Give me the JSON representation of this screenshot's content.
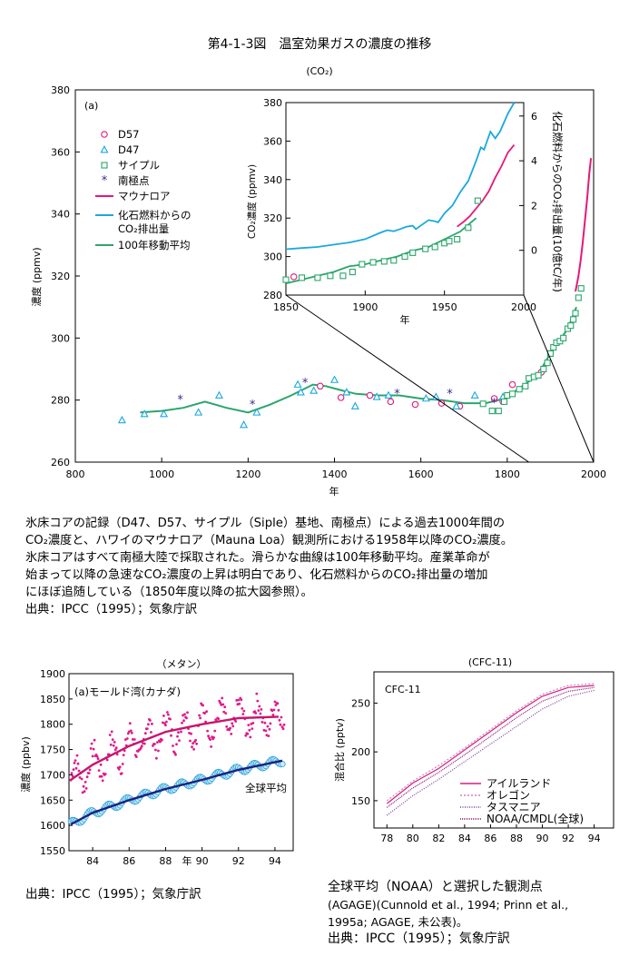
{
  "figure": {
    "title": "第4-1-3図　温室効果ガスの濃度の推移",
    "co2_subtitle": "(CO₂)",
    "caption_lines": [
      "氷床コアの記録（D47、D57、サイプル（Siple）基地、南極点）による過去1000年間の",
      "CO₂濃度と、ハワイのマウナロア（Mauna Loa）観測所における1958年以降のCO₂濃度。",
      "氷床コアはすべて南極大陸で採取された。滑らかな曲線は100年移動平均。産業革命が",
      "始まって以降の急速なCO₂濃度の上昇は明白であり、化石燃料からのCO₂排出量の増加",
      "にほぼ追随している（1850年度以降の拡大図参照）。",
      "出典：IPCC（1995）；気象庁訳"
    ],
    "methane_source": "出典：IPCC（1995）；気象庁訳",
    "cfc_caption_lines": [
      "全球平均（NOAA）と選択した観測点",
      "(AGAGE)(Cunnold et al., 1994; Prinn et al.,",
      "1995a; AGAGE, 未公表)。",
      "出典：IPCC（1995）；気象庁訳"
    ]
  },
  "chart_data": [
    {
      "id": "co2-main",
      "type": "scatter",
      "panel_label": "(a)",
      "xlabel": "年",
      "ylabel": "濃度 (ppmv)",
      "xlim": [
        800,
        2000
      ],
      "ylim": [
        260,
        380
      ],
      "xticks": [
        800,
        1000,
        1200,
        1400,
        1600,
        1800,
        2000
      ],
      "yticks": [
        260,
        280,
        300,
        320,
        340,
        360,
        380
      ],
      "legend_placement": "top-left",
      "legend": [
        "D57",
        "D47",
        "サイプル",
        "南極点",
        "マウナロア",
        "化石燃料からの",
        "CO₂排出量",
        "100年移動平均"
      ],
      "series": [
        {
          "name": "D57",
          "marker": "circle",
          "color": "#e8177a",
          "x": [
            1367,
            1415,
            1482,
            1530,
            1587,
            1648,
            1690,
            1770,
            1790,
            1812,
            1879
          ],
          "y": [
            284.5,
            280.8,
            281.5,
            279.5,
            278.6,
            279,
            278,
            280.5,
            279.5,
            285,
            289
          ]
        },
        {
          "name": "D47",
          "marker": "triangle",
          "color": "#1aa8e0",
          "x": [
            908,
            960,
            1005,
            1085,
            1133,
            1190,
            1220,
            1315,
            1322,
            1352,
            1400,
            1428,
            1448,
            1498,
            1525,
            1612,
            1635,
            1682,
            1725,
            1790
          ],
          "y": [
            273.5,
            275.5,
            275.5,
            276,
            281.5,
            272,
            276,
            285,
            282.5,
            283,
            286.5,
            282.5,
            278,
            281,
            281.5,
            280.5,
            281,
            278,
            281.5,
            281
          ]
        },
        {
          "name": "サイプル",
          "marker": "square",
          "color": "#2aa66a",
          "x": [
            1744,
            1765,
            1780,
            1793,
            1800,
            1812,
            1828,
            1842,
            1850,
            1862,
            1872,
            1884,
            1893,
            1900,
            1907,
            1914,
            1922,
            1930,
            1940,
            1947,
            1953,
            1958,
            1965,
            1971
          ],
          "y": [
            278.8,
            276.5,
            276.5,
            279.5,
            281.5,
            282,
            283.5,
            284.5,
            287,
            287.5,
            288,
            290,
            292,
            295,
            297,
            298.5,
            299,
            300,
            303,
            304,
            306,
            308,
            313,
            316
          ]
        },
        {
          "name": "南極点",
          "marker": "star",
          "color": "#3a2a8a",
          "x": [
            1043,
            1210,
            1332,
            1545,
            1667,
            1770
          ],
          "y": [
            280,
            278.5,
            285.5,
            282,
            282,
            279
          ]
        },
        {
          "name": "マウナロア",
          "marker": "line",
          "color": "#e8177a",
          "x": [
            1958,
            1965,
            1970,
            1975,
            1980,
            1985,
            1990,
            1994
          ],
          "y": [
            315,
            320,
            325,
            331,
            338,
            345,
            353,
            358
          ]
        },
        {
          "name": "100年移動平均",
          "marker": "line",
          "color": "#2aa66a",
          "x": [
            950,
            1000,
            1050,
            1100,
            1150,
            1200,
            1250,
            1300,
            1350,
            1380,
            1420,
            1450,
            1500,
            1550,
            1600,
            1650,
            1700,
            1750,
            1780,
            1800,
            1820,
            1850,
            1870,
            1900,
            1920,
            1940,
            1960
          ],
          "y": [
            276,
            276.5,
            277.5,
            279.5,
            277.5,
            276,
            278.5,
            281.5,
            285,
            284.5,
            283,
            282,
            281.5,
            281.5,
            280.5,
            280,
            279,
            279,
            280,
            281.5,
            283,
            286,
            288,
            295,
            299,
            303,
            310
          ]
        }
      ]
    },
    {
      "id": "co2-inset",
      "type": "line",
      "xlabel": "年",
      "ylabel": "CO₂濃度 (ppmv)",
      "y2label": "化石燃料からのCO₂排出量(10億tC/年)",
      "xlim": [
        1850,
        2000
      ],
      "ylim": [
        280,
        380
      ],
      "y2lim": [
        -2,
        6.6
      ],
      "xticks": [
        1850,
        1900,
        1950,
        2000
      ],
      "yticks": [
        280,
        300,
        320,
        340,
        360,
        380
      ],
      "y2ticks": [
        0,
        2,
        4,
        6
      ],
      "series": [
        {
          "name": "化石燃料からのCO₂排出量",
          "axis": "right",
          "color": "#1aa8e0",
          "x": [
            1850,
            1860,
            1870,
            1880,
            1890,
            1900,
            1910,
            1914,
            1918,
            1922,
            1926,
            1930,
            1932,
            1936,
            1940,
            1944,
            1946,
            1950,
            1955,
            1960,
            1965,
            1970,
            1973,
            1975,
            1979,
            1982,
            1985,
            1990,
            1994
          ],
          "y": [
            0.05,
            0.1,
            0.15,
            0.25,
            0.35,
            0.5,
            0.8,
            0.9,
            0.85,
            0.95,
            1.05,
            1.1,
            0.95,
            1.15,
            1.35,
            1.3,
            1.25,
            1.65,
            2.0,
            2.6,
            3.1,
            4.0,
            4.6,
            4.5,
            5.3,
            5.0,
            5.3,
            6.1,
            6.6
          ]
        },
        {
          "name": "マウナロア",
          "axis": "left",
          "color": "#e8177a",
          "x": [
            1958,
            1962,
            1966,
            1970,
            1974,
            1978,
            1982,
            1986,
            1990,
            1994
          ],
          "y": [
            315.5,
            318,
            321,
            325,
            329,
            334,
            341,
            347,
            354,
            358
          ]
        },
        {
          "name": "100年移動平均",
          "axis": "left",
          "color": "#2aa66a",
          "x": [
            1850,
            1860,
            1870,
            1880,
            1890,
            1900,
            1910,
            1920,
            1930,
            1940,
            1950,
            1960,
            1970
          ],
          "y": [
            286,
            288,
            290,
            292,
            295,
            296,
            298,
            300,
            303,
            305,
            309,
            313,
            320
          ]
        },
        {
          "name": "サイプル",
          "axis": "left",
          "marker": "square",
          "color": "#2aa66a",
          "x": [
            1850,
            1860,
            1870,
            1878,
            1886,
            1892,
            1898,
            1905,
            1912,
            1918,
            1925,
            1930,
            1938,
            1944,
            1950,
            1953,
            1958,
            1965,
            1971
          ],
          "y": [
            288,
            289,
            289,
            290,
            290,
            292,
            296,
            297,
            297.5,
            298,
            300,
            302,
            304,
            305,
            307,
            308,
            309,
            315,
            329
          ]
        },
        {
          "name": "D57",
          "axis": "left",
          "marker": "circle",
          "color": "#e8177a",
          "x": [
            1855
          ],
          "y": [
            289.5
          ]
        }
      ]
    },
    {
      "id": "methane",
      "type": "scatter",
      "title": "（メタン）",
      "panel_label": "(a)モールド湾(カナダ)",
      "xlabel": "年",
      "ylabel": "濃度 (ppbv)",
      "xlim": [
        82.7,
        95
      ],
      "ylim": [
        1550,
        1900
      ],
      "xticks": [
        84,
        86,
        88,
        90,
        92,
        94
      ],
      "yticks": [
        1550,
        1600,
        1650,
        1700,
        1750,
        1800,
        1850,
        1900
      ],
      "annotation": "全球平均",
      "series": [
        {
          "name": "モールド湾 trend",
          "color": "#c8146e",
          "x": [
            82.8,
            84,
            86,
            88,
            90,
            92,
            94.2
          ],
          "y": [
            1690,
            1720,
            1757,
            1785,
            1800,
            1812,
            1815
          ]
        },
        {
          "name": "全球平均 trend",
          "color": "#1a2080",
          "x": [
            82.8,
            84,
            86,
            88,
            90,
            92,
            94.4
          ],
          "y": [
            1602,
            1625,
            1650,
            1672,
            1690,
            1710,
            1728
          ]
        }
      ]
    },
    {
      "id": "cfc11",
      "type": "line",
      "title": "(CFC-11)",
      "panel_label": "CFC-11",
      "ylabel": "混合比 (pptv)",
      "xlim": [
        77,
        95.5
      ],
      "ylim": [
        122,
        282
      ],
      "xticks": [
        78,
        80,
        82,
        84,
        86,
        88,
        90,
        92,
        94
      ],
      "yticks": [
        150,
        200,
        250
      ],
      "legend_placement": "bottom-right",
      "series": [
        {
          "name": "アイルランド",
          "color": "#d81b80",
          "x": [
            78,
            80,
            82,
            84,
            86,
            88,
            90,
            92,
            94
          ],
          "y": [
            147,
            168,
            183,
            202,
            221,
            240,
            257,
            266,
            268
          ]
        },
        {
          "name": "オレゴン",
          "color": "#d081c0",
          "x": [
            78,
            80,
            82,
            84,
            86,
            88,
            90,
            92,
            94
          ],
          "y": [
            150,
            170,
            186,
            204,
            223,
            242,
            259,
            268,
            270
          ]
        },
        {
          "name": "タスマニア",
          "color": "#7a3aa0",
          "x": [
            78,
            80,
            82,
            84,
            86,
            88,
            90,
            92,
            94
          ],
          "y": [
            135,
            155,
            172,
            190,
            208,
            226,
            244,
            257,
            263
          ]
        },
        {
          "name": "NOAA/CMDL(全球)",
          "color": "#8a1870",
          "x": [
            78,
            80,
            82,
            84,
            86,
            88,
            90,
            92,
            94
          ],
          "y": [
            143,
            163,
            179,
            197,
            216,
            235,
            252,
            262,
            266
          ]
        }
      ]
    }
  ]
}
